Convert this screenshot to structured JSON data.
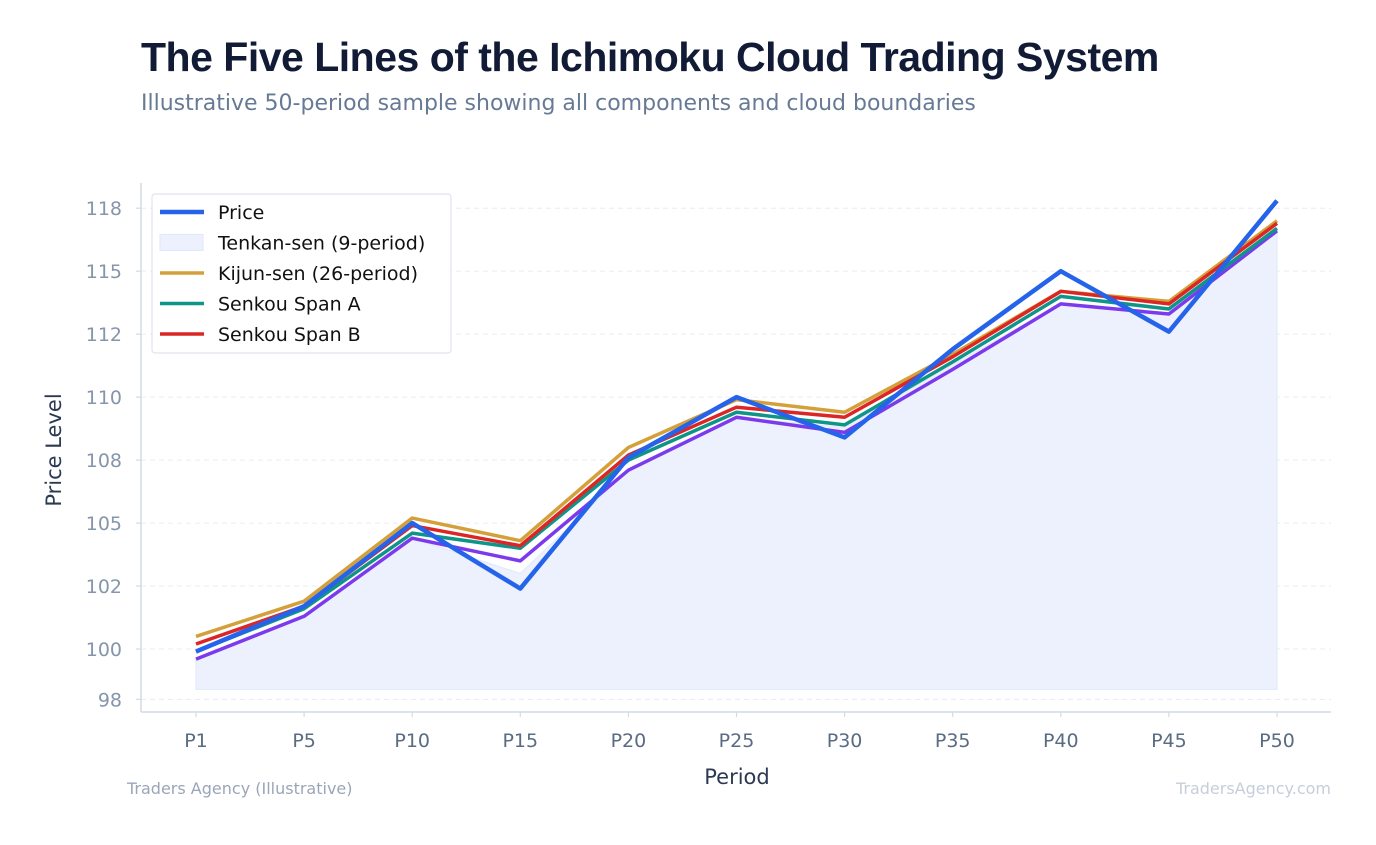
{
  "header": {
    "title": "The Five Lines of the Ichimoku Cloud Trading System",
    "subtitle": "Illustrative 50-period sample showing all components and cloud boundaries"
  },
  "footer": {
    "source": "Traders Agency (Illustrative)",
    "watermark": "TradersAgency.com"
  },
  "chart_data": {
    "type": "line",
    "xlabel": "Period",
    "ylabel": "Price Level",
    "categories": [
      "P1",
      "P5",
      "P10",
      "P15",
      "P20",
      "P25",
      "P30",
      "P35",
      "P40",
      "P45",
      "P50"
    ],
    "ylim": [
      97.5,
      118.5
    ],
    "yticks": [
      {
        "value": 98,
        "label": "98"
      },
      {
        "value": 100,
        "label": "100"
      },
      {
        "value": 102.5,
        "label": "102"
      },
      {
        "value": 105,
        "label": "105"
      },
      {
        "value": 107.5,
        "label": "108"
      },
      {
        "value": 110,
        "label": "110"
      },
      {
        "value": 112.5,
        "label": "112"
      },
      {
        "value": 115,
        "label": "115"
      },
      {
        "value": 117.5,
        "label": "118"
      }
    ],
    "grid": true,
    "legend_position": "top-left",
    "series": [
      {
        "name": "Price",
        "kind": "line",
        "color": "#2563eb",
        "width": 4.5,
        "values": [
          99.9,
          101.7,
          105.0,
          102.4,
          107.6,
          110.0,
          108.4,
          111.9,
          115.0,
          112.6,
          117.8
        ]
      },
      {
        "name": "Tenkan-sen (9-period)",
        "kind": "area",
        "color": "#ecf1fd",
        "edge": "#dfe7fb",
        "base": 98.4,
        "values": [
          99.6,
          101.3,
          104.4,
          103.0,
          107.1,
          109.2,
          108.8,
          111.3,
          113.7,
          113.3,
          116.6
        ]
      },
      {
        "name": "Kijun-sen (26-period)",
        "kind": "line",
        "color": "#d4a03a",
        "width": 3.5,
        "values": [
          100.5,
          101.9,
          105.2,
          104.3,
          108.0,
          109.9,
          109.4,
          111.7,
          114.2,
          113.8,
          117.0
        ]
      },
      {
        "name": "Senkou Span A",
        "kind": "line",
        "color": "#0f9488",
        "width": 3.5,
        "values": [
          99.9,
          101.6,
          104.6,
          104.0,
          107.5,
          109.4,
          108.9,
          111.4,
          114.0,
          113.5,
          116.7
        ]
      },
      {
        "name": "Senkou Span B",
        "kind": "line",
        "color": "#dc2626",
        "width": 3.5,
        "values": [
          100.2,
          101.7,
          104.9,
          104.1,
          107.7,
          109.6,
          109.2,
          111.6,
          114.2,
          113.7,
          116.9
        ]
      },
      {
        "name": "",
        "kind": "line",
        "color": "#7c3aed",
        "width": 3.5,
        "legend": false,
        "values": [
          99.6,
          101.3,
          104.4,
          103.5,
          107.1,
          109.2,
          108.6,
          111.1,
          113.7,
          113.3,
          116.6
        ]
      }
    ]
  }
}
